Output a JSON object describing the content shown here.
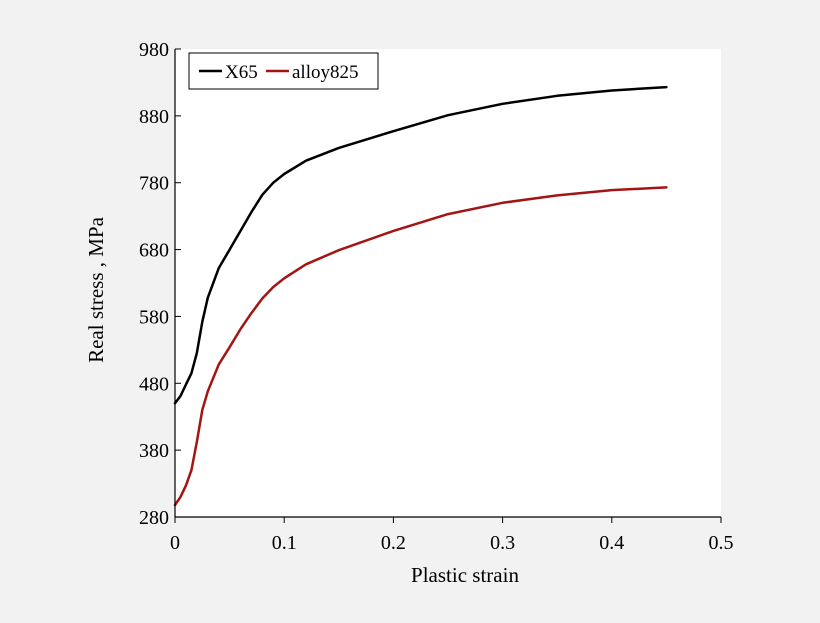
{
  "chart_data": {
    "type": "line",
    "title": "",
    "xlabel": "Plastic strain",
    "ylabel": "Real stress , MPa",
    "xlim": [
      0,
      0.5
    ],
    "ylim": [
      280,
      980
    ],
    "xticks": [
      0,
      0.1,
      0.2,
      0.3,
      0.4,
      0.5
    ],
    "xtick_labels": [
      "0",
      "0.1",
      "0.2",
      "0.3",
      "0.4",
      "0.5"
    ],
    "yticks": [
      280,
      380,
      480,
      580,
      680,
      780,
      880,
      980
    ],
    "ytick_labels": [
      "280",
      "380",
      "480",
      "580",
      "680",
      "780",
      "880",
      "980"
    ],
    "grid": false,
    "legend": "top-left",
    "series": [
      {
        "name": "X65",
        "color": "#000000",
        "x": [
          0,
          0.005,
          0.01,
          0.015,
          0.02,
          0.025,
          0.03,
          0.04,
          0.05,
          0.06,
          0.07,
          0.08,
          0.09,
          0.1,
          0.12,
          0.15,
          0.2,
          0.25,
          0.3,
          0.35,
          0.4,
          0.45
        ],
        "y": [
          450,
          461,
          478,
          495,
          525,
          572,
          608,
          652,
          680,
          708,
          736,
          762,
          780,
          793,
          813,
          832,
          857,
          881,
          898,
          910,
          918,
          923
        ]
      },
      {
        "name": "alloy825",
        "color": "#a31515",
        "x": [
          0,
          0.005,
          0.01,
          0.015,
          0.02,
          0.025,
          0.03,
          0.04,
          0.05,
          0.06,
          0.07,
          0.08,
          0.09,
          0.1,
          0.12,
          0.15,
          0.2,
          0.25,
          0.3,
          0.35,
          0.4,
          0.45
        ],
        "y": [
          298,
          310,
          327,
          350,
          392,
          440,
          468,
          508,
          534,
          561,
          585,
          607,
          624,
          637,
          658,
          679,
          708,
          733,
          750,
          761,
          769,
          773
        ]
      }
    ]
  }
}
